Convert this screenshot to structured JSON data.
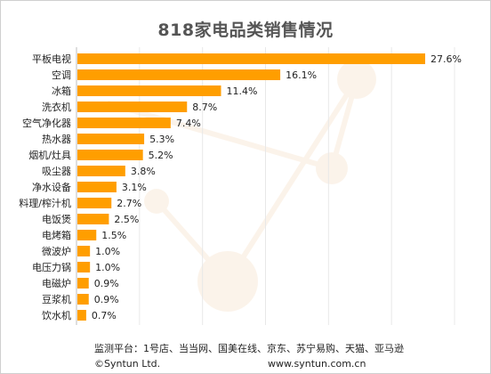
{
  "chart_data": {
    "type": "bar",
    "orientation": "horizontal",
    "title": "818家电品类销售情况",
    "categories": [
      "平板电视",
      "空调",
      "冰箱",
      "洗衣机",
      "空气净化器",
      "热水器",
      "烟机/灶具",
      "吸尘器",
      "净水设备",
      "料理/榨汁机",
      "电饭煲",
      "电烤箱",
      "微波炉",
      "电压力锅",
      "电磁炉",
      "豆浆机",
      "饮水机"
    ],
    "values": [
      27.6,
      16.1,
      11.4,
      8.7,
      7.4,
      5.3,
      5.2,
      3.8,
      3.1,
      2.7,
      2.5,
      1.5,
      1.0,
      1.0,
      0.9,
      0.9,
      0.7
    ],
    "value_labels": [
      "27.6%",
      "16.1%",
      "11.4%",
      "8.7%",
      "7.4%",
      "5.3%",
      "5.2%",
      "3.8%",
      "3.1%",
      "2.7%",
      "2.5%",
      "1.5%",
      "1.0%",
      "1.0%",
      "0.9%",
      "0.9%",
      "0.7%"
    ],
    "xlim": [
      0,
      30
    ],
    "grid": true,
    "bar_color": "#FF9E00",
    "grid_color": "#E8E8E8"
  },
  "footer": {
    "sources": "监测平台：1号店、当当网、国美在线、京东、苏宁易购、天猫、亚马逊",
    "copyright": "©Syntun Ltd.",
    "website": "www.syntun.com.cn"
  }
}
